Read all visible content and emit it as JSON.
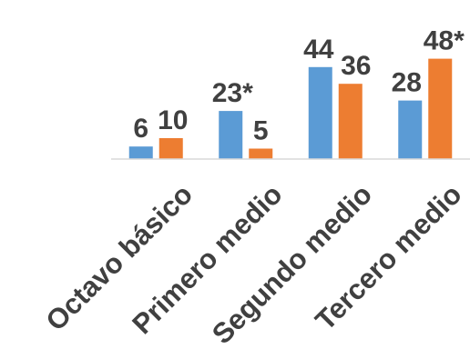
{
  "chart_data": {
    "type": "bar",
    "categories": [
      "Octavo básico",
      "Primero medio",
      "Segundo medio",
      "Tercero medio"
    ],
    "series": [
      {
        "color": "#5b9bd5",
        "values": [
          6,
          23,
          44,
          28
        ],
        "labels": [
          "6",
          "23*",
          "44",
          "28"
        ]
      },
      {
        "color": "#ed7d31",
        "values": [
          10,
          5,
          36,
          48
        ],
        "labels": [
          "10",
          "5",
          "36",
          "48*"
        ]
      }
    ],
    "ylim": [
      0,
      50
    ],
    "grid": false,
    "legend": "none"
  }
}
